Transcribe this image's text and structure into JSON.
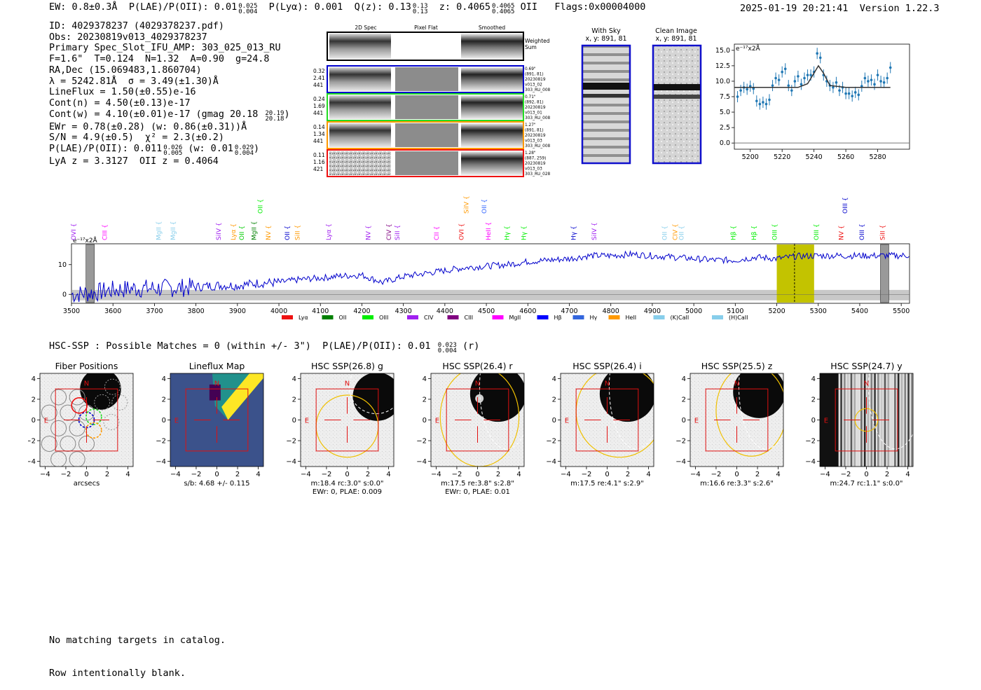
{
  "header": {
    "ew": "EW: 0.8±0.3Å",
    "plae_label": "P(LAE)/P(OII):",
    "plae_val": "0.01",
    "plae_hi": "0.025",
    "plae_lo": "0.004",
    "plya": "P(Lyα): 0.001",
    "qz_label": "Q(z): 0.13",
    "qz_hi": "0.13",
    "qz_lo": "0.13",
    "z_label": "z: 0.4065",
    "z_hi": "0.4065",
    "z_lo": "0.4065",
    "z_line": "OII",
    "flags": "Flags:0x00004000",
    "timestamp": "2025-01-19 20:21:41",
    "version": "Version 1.22.3"
  },
  "info": {
    "id": "ID: 4029378237 (4029378237.pdf)",
    "obs": "Obs: 20230819v013_4029378237",
    "primary": "Primary Spec_Slot_IFU_AMP: 303_025_013_RU",
    "f_line": "F=1.6\"  T=0.124  N=1.32  A=0.90  g=24.8",
    "radec": "RA,Dec (15.069483,1.860704)",
    "lambda": "λ = 5242.81Å  σ = 3.49(±1.30)Å",
    "lineflux": "LineFlux = 1.50(±0.55)e-16",
    "contn": "Cont(n) = 4.50(±0.13)e-17",
    "contw": "Cont(w) = 4.10(±0.01)e-17 (gmag 20.18",
    "contw_hi": "20.19",
    "contw_lo": "20.18",
    "contw_close": ")",
    "ewr": "EWr = 0.78(±0.28) (w: 0.86(±0.31))Å",
    "sn": "S/N = 4.9(±0.5)  χ² = 2.3(±0.2)",
    "plae": "P(LAE)/P(OII): 0.011",
    "plae_hi": "0.026",
    "plae_lo": "0.005",
    "plae_w": "(w: 0.01",
    "plae_w_hi": "0.029",
    "plae_w_lo": "0.004",
    "plae_w_close": ")",
    "lya_z": "LyA z = 3.3127  OII z = 0.4064"
  },
  "cutouts": {
    "col_titles": [
      "2D Spec",
      "Pixel Flat",
      "Smoothed"
    ],
    "weighted_sum": [
      "Weighted",
      "Sum"
    ],
    "rows": [
      {
        "left": [
          "0.32",
          "2.41",
          "441"
        ],
        "right": [
          "0.69\"",
          "(891, 81)",
          "20230819",
          "v013_02",
          "303_RU_008"
        ],
        "color": "#0000cc"
      },
      {
        "left": [
          "0.24",
          "1.69",
          "441"
        ],
        "right": [
          "0.71\"",
          "(892, 81)",
          "20230819",
          "v013_01",
          "303_RU_008"
        ],
        "color": "#22dd22"
      },
      {
        "left": [
          "0.14",
          "1.34",
          "441"
        ],
        "right": [
          "1.27\"",
          "(891, 81)",
          "20230819",
          "v013_03",
          "303_RU_008"
        ],
        "color": "#ff9900"
      },
      {
        "left": [
          "0.11",
          "1.16",
          "421"
        ],
        "right": [
          "1.28\"",
          "(887, 259)",
          "20230819",
          "v013_03",
          "303_RU_028"
        ],
        "color": "#ee1111"
      }
    ]
  },
  "sky_panels": {
    "with_sky_title": "With Sky",
    "clean_title": "Clean Image",
    "coords": "x, y: 891, 81"
  },
  "zoom_chart": {
    "ylabel": "e⁻¹⁷x2Å",
    "xticks": [
      "5200",
      "5220",
      "5240",
      "5260",
      "5280"
    ],
    "yticks": [
      "0.0",
      "2.5",
      "5.0",
      "7.5",
      "10.0",
      "12.5",
      "15.0"
    ]
  },
  "spectrum": {
    "ylabel": "e⁻¹⁷x2Å",
    "yticks": [
      "0",
      "10"
    ],
    "xticks": [
      "3500",
      "3600",
      "3700",
      "3800",
      "3900",
      "4000",
      "4100",
      "4200",
      "4300",
      "4400",
      "4500",
      "4600",
      "4700",
      "4800",
      "4900",
      "5000",
      "5100",
      "5200",
      "5300",
      "5400",
      "5500"
    ],
    "lines": [
      {
        "name": "OVI",
        "w": 3505,
        "color": "#a020f0",
        "row": 0
      },
      {
        "name": "CIII",
        "w": 3580,
        "color": "#ff00ff",
        "row": 0
      },
      {
        "name": "MgII",
        "w": 3710,
        "color": "#87ceeb",
        "row": 0
      },
      {
        "name": "MgII",
        "w": 3745,
        "color": "#87ceeb",
        "row": 0
      },
      {
        "name": "SiIV",
        "w": 3855,
        "color": "#a020f0",
        "row": 0
      },
      {
        "name": "Lyα",
        "w": 3890,
        "color": "#ff9900",
        "row": 0
      },
      {
        "name": "OII",
        "w": 3910,
        "color": "#00cc00",
        "row": 0
      },
      {
        "name": "MgII",
        "w": 3940,
        "color": "#008000",
        "row": 0
      },
      {
        "name": "OII",
        "w": 3955,
        "color": "#00ee00",
        "row": 1
      },
      {
        "name": "NV",
        "w": 3975,
        "color": "#ff9900",
        "row": 0
      },
      {
        "name": "OII",
        "w": 4020,
        "color": "#0000cc",
        "row": 0
      },
      {
        "name": "SiII",
        "w": 4045,
        "color": "#ff9900",
        "row": 0
      },
      {
        "name": "Lyα",
        "w": 4120,
        "color": "#a020f0",
        "row": 0
      },
      {
        "name": "NV",
        "w": 4215,
        "color": "#a020f0",
        "row": 0
      },
      {
        "name": "CIV",
        "w": 4265,
        "color": "#800080",
        "row": 0
      },
      {
        "name": "SiII",
        "w": 4285,
        "color": "#a020f0",
        "row": 0
      },
      {
        "name": "CII",
        "w": 4380,
        "color": "#ff00ff",
        "row": 0
      },
      {
        "name": "OVI",
        "w": 4440,
        "color": "#ee1111",
        "row": 0
      },
      {
        "name": "SiIV",
        "w": 4452,
        "color": "#ff9900",
        "row": 1
      },
      {
        "name": "OII",
        "w": 4495,
        "color": "#3366ff",
        "row": 1
      },
      {
        "name": "HeII",
        "w": 4505,
        "color": "#ff00ff",
        "row": 0
      },
      {
        "name": "Hγ",
        "w": 4550,
        "color": "#00ee00",
        "row": 0
      },
      {
        "name": "Hγ",
        "w": 4590,
        "color": "#00ee00",
        "row": 0
      },
      {
        "name": "Hγ",
        "w": 4710,
        "color": "#0000cc",
        "row": 0
      },
      {
        "name": "SiIV",
        "w": 4760,
        "color": "#a020f0",
        "row": 0
      },
      {
        "name": "OII",
        "w": 4930,
        "color": "#87ceeb",
        "row": 0
      },
      {
        "name": "CIV",
        "w": 4955,
        "color": "#ff9900",
        "row": 0
      },
      {
        "name": "OII",
        "w": 4970,
        "color": "#87ceeb",
        "row": 0
      },
      {
        "name": "Hβ",
        "w": 5095,
        "color": "#00ee00",
        "row": 0
      },
      {
        "name": "Hβ",
        "w": 5145,
        "color": "#00ee00",
        "row": 0
      },
      {
        "name": "OIII",
        "w": 5195,
        "color": "#00ee00",
        "row": 0
      },
      {
        "name": "OIII",
        "w": 5295,
        "color": "#00ee00",
        "row": 0
      },
      {
        "name": "NV",
        "w": 5355,
        "color": "#ee1111",
        "row": 0
      },
      {
        "name": "OIII",
        "w": 5365,
        "color": "#0000cc",
        "row": 1
      },
      {
        "name": "OIII",
        "w": 5405,
        "color": "#0000cc",
        "row": 0
      },
      {
        "name": "SiII",
        "w": 5455,
        "color": "#ee1111",
        "row": 0
      }
    ],
    "legend": [
      {
        "label": "Lyα",
        "color": "#ee1111"
      },
      {
        "label": "OII",
        "color": "#008000"
      },
      {
        "label": "OIII",
        "color": "#00ee00"
      },
      {
        "label": "CIV",
        "color": "#a020f0"
      },
      {
        "label": "CIII",
        "color": "#800080"
      },
      {
        "label": "MgII",
        "color": "#ff00ff"
      },
      {
        "label": "Hβ",
        "color": "#0000ff"
      },
      {
        "label": "Hγ",
        "color": "#3366dd"
      },
      {
        "label": "HeII",
        "color": "#ff9900"
      },
      {
        "label": "(K)CaII",
        "color": "#87ceeb"
      },
      {
        "label": "(H)CaII",
        "color": "#87ceeb"
      }
    ]
  },
  "hsc": {
    "summary": "HSC-SSP : Possible Matches = 0 (within +/- 3\")  P(LAE)/P(OII): 0.01",
    "summary_hi": "0.023",
    "summary_lo": "0.004",
    "summary_tail": "(r)",
    "xticks": [
      "−4",
      "−2",
      "0",
      "2",
      "4"
    ],
    "yticks": [
      "4",
      "2",
      "0",
      "−2",
      "−4"
    ],
    "north": "N",
    "east": "E",
    "panels": [
      {
        "title": "Fiber Positions",
        "caption": [
          "arcsecs"
        ]
      },
      {
        "title": "Lineflux Map",
        "caption": [
          "s/b: 4.68 +/- 0.115"
        ]
      },
      {
        "title": "HSC SSP(26.8) g",
        "caption": [
          "m:18.4 rc:3.0\"  s:0.0\"",
          "EWr: 0, PLAE: 0.009"
        ]
      },
      {
        "title": "HSC SSP(26.4) r",
        "caption": [
          "m:17.5  re:3.8\"  s:2.8\"",
          "EWr: 0, PLAE: 0.01"
        ]
      },
      {
        "title": "HSC SSP(26.4) i",
        "caption": [
          "m:17.5  re:4.1\"  s:2.9\""
        ]
      },
      {
        "title": "HSC SSP(25.5) z",
        "caption": [
          "m:16.6  re:3.3\"  s:2.6\""
        ]
      },
      {
        "title": "HSC SSP(24.7) y",
        "caption": [
          "m:24.7  rc:1.1\"  s:0.0\""
        ]
      }
    ]
  },
  "footer": {
    "line1": "No matching targets in catalog.",
    "line2": "Row intentionally blank."
  },
  "chart_data": [
    {
      "type": "line",
      "title": "",
      "xlabel": "",
      "ylabel": "e⁻¹⁷x2Å",
      "xlim": [
        3500,
        5520
      ],
      "ylim": [
        -3,
        17
      ],
      "grid": false,
      "highlight_region": [
        5200,
        5290
      ],
      "line_center": 5242.81,
      "series": [
        {
          "name": "",
          "x": [
            3500,
            3550,
            3600,
            3650,
            3700,
            3750,
            3800,
            3850,
            3900,
            3950,
            4000,
            4050,
            4100,
            4150,
            4200,
            4250,
            4300,
            4350,
            4400,
            4450,
            4500,
            4550,
            4600,
            4650,
            4700,
            4750,
            4800,
            4850,
            4900,
            4950,
            5000,
            5050,
            5100,
            5150,
            5200,
            5250,
            5300,
            5350,
            5400,
            5450,
            5500,
            5520
          ],
          "values": [
            0,
            0.5,
            1.5,
            2,
            2,
            2.2,
            2.5,
            3,
            3,
            3.8,
            4,
            5,
            5.5,
            6.2,
            6.5,
            4,
            6,
            7,
            8,
            9,
            9.5,
            10,
            11,
            11.5,
            12,
            13,
            13,
            13.5,
            13,
            12.5,
            12,
            11.5,
            11.5,
            12.5,
            12,
            12.8,
            13,
            13,
            13,
            13,
            13,
            13.2
          ]
        }
      ]
    },
    {
      "type": "scatter",
      "title": "",
      "xlabel": "",
      "ylabel": "e⁻¹⁷x2Å",
      "xlim": [
        5190,
        5300
      ],
      "ylim": [
        -1,
        16
      ],
      "series": [
        {
          "name": "",
          "x": [
            5192,
            5194,
            5196,
            5198,
            5200,
            5202,
            5204,
            5206,
            5208,
            5210,
            5212,
            5214,
            5216,
            5218,
            5220,
            5222,
            5224,
            5226,
            5228,
            5230,
            5232,
            5234,
            5236,
            5238,
            5240,
            5242,
            5244,
            5246,
            5248,
            5250,
            5252,
            5254,
            5256,
            5258,
            5260,
            5262,
            5264,
            5266,
            5268,
            5270,
            5272,
            5274,
            5276,
            5278,
            5280,
            5282,
            5284,
            5286,
            5288
          ],
          "values": [
            7.5,
            8.5,
            9,
            8.7,
            9.2,
            8.8,
            6.8,
            6.3,
            6.6,
            6.3,
            7,
            9.3,
            10.5,
            10.2,
            11.5,
            12,
            9.3,
            8.5,
            10,
            10.8,
            9.5,
            10.5,
            11,
            11,
            11.5,
            14.5,
            13.8,
            11,
            10,
            9.3,
            9,
            9.8,
            8.5,
            9,
            8,
            8,
            7.6,
            8.2,
            7.8,
            9.2,
            10.5,
            10,
            10.2,
            9.5,
            11,
            10,
            9.8,
            10.5,
            12.2
          ]
        },
        {
          "name": "",
          "x": [
            5190,
            5200,
            5220,
            5230,
            5236,
            5240,
            5242.8,
            5246,
            5250,
            5260,
            5288
          ],
          "values": [
            9,
            9,
            9,
            9,
            9.6,
            11.3,
            12.5,
            11.3,
            9.3,
            9,
            9
          ]
        }
      ]
    }
  ]
}
